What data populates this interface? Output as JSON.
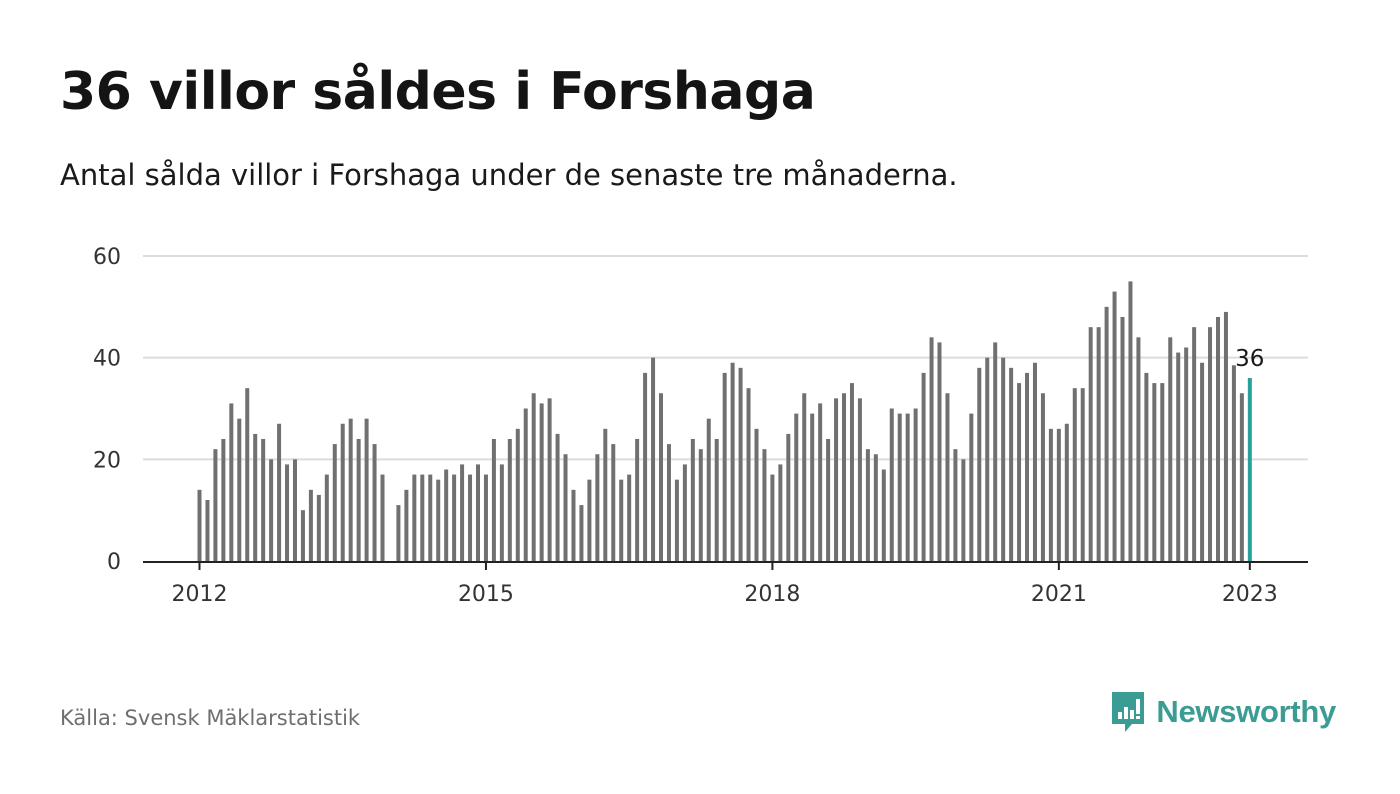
{
  "title": "36 villor såldes i Forshaga",
  "subtitle": "Antal sålda villor i Forshaga under de senaste tre månaderna.",
  "source": "Källa: Svensk Mäklarstatistik",
  "brand": {
    "name": "Newsworthy",
    "icon": "newsworthy-logo-icon"
  },
  "colors": {
    "bar": "#707070",
    "highlight": "#2aa198",
    "grid": "#dcdcdc",
    "axis": "#222222",
    "brand": "#3a9c93"
  },
  "chart_data": {
    "type": "bar",
    "title": "36 villor såldes i Forshaga",
    "subtitle": "Antal sålda villor i Forshaga under de senaste tre månaderna.",
    "xlabel": "",
    "ylabel": "",
    "ylim": [
      0,
      60
    ],
    "y_ticks": [
      0,
      20,
      40,
      60
    ],
    "x_ticks": [
      {
        "label": "2012",
        "index": 0
      },
      {
        "label": "2015",
        "index": 36
      },
      {
        "label": "2018",
        "index": 72
      },
      {
        "label": "2021",
        "index": 108
      },
      {
        "label": "2023",
        "index": 132
      }
    ],
    "grid": true,
    "first_month": "2012-01",
    "last_month": "2023-01",
    "values": [
      14,
      12,
      22,
      24,
      31,
      28,
      34,
      25,
      24,
      20,
      27,
      19,
      20,
      10,
      14,
      13,
      17,
      23,
      27,
      28,
      24,
      28,
      23,
      17,
      null,
      11,
      14,
      17,
      17,
      17,
      16,
      18,
      17,
      19,
      17,
      19,
      17,
      24,
      19,
      24,
      26,
      30,
      33,
      31,
      32,
      25,
      21,
      14,
      11,
      16,
      21,
      26,
      23,
      16,
      17,
      24,
      37,
      40,
      33,
      23,
      16,
      19,
      24,
      22,
      28,
      24,
      37,
      39,
      38,
      34,
      26,
      22,
      17,
      19,
      25,
      29,
      33,
      29,
      31,
      24,
      32,
      33,
      35,
      32,
      22,
      21,
      18,
      30,
      29,
      29,
      30,
      37,
      44,
      43,
      33,
      22,
      20,
      29,
      38,
      40,
      43,
      40,
      38,
      35,
      37,
      39,
      33,
      26,
      26,
      27,
      34,
      34,
      46,
      46,
      50,
      53,
      48,
      55,
      44,
      37,
      35,
      35,
      44,
      41,
      42,
      46,
      39,
      46,
      48,
      49,
      38.5,
      33,
      36
    ],
    "highlight_last": true,
    "last_value_label": "36"
  }
}
